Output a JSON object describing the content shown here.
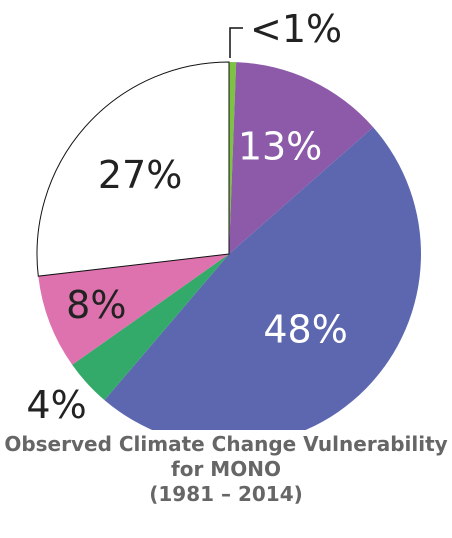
{
  "chart_data": {
    "type": "pie",
    "title": [
      "Observed Climate Change Vulnerability",
      "for MONO",
      "(1981 – 2014)"
    ],
    "start_angle_deg": 0,
    "direction": "clockwise",
    "slices": [
      {
        "label": "<1%",
        "value": 0.6,
        "color": "#7dc242",
        "label_position": "outside-callout",
        "label_color": "#222222"
      },
      {
        "label": "13%",
        "value": 13,
        "color": "#8c5aa8",
        "label_position": "inside",
        "label_color": "#ffffff"
      },
      {
        "label": "48%",
        "value": 48,
        "color": "#5d67b0",
        "label_position": "inside",
        "label_color": "#ffffff"
      },
      {
        "label": "4%",
        "value": 4,
        "color": "#33a96a",
        "label_position": "outside",
        "label_color": "#222222"
      },
      {
        "label": "8%",
        "value": 8,
        "color": "#de72ae",
        "label_position": "inside",
        "label_color": "#222222"
      },
      {
        "label": "27%",
        "value": 27,
        "color": "#ffffff",
        "label_position": "inside",
        "label_color": "#222222"
      }
    ]
  }
}
